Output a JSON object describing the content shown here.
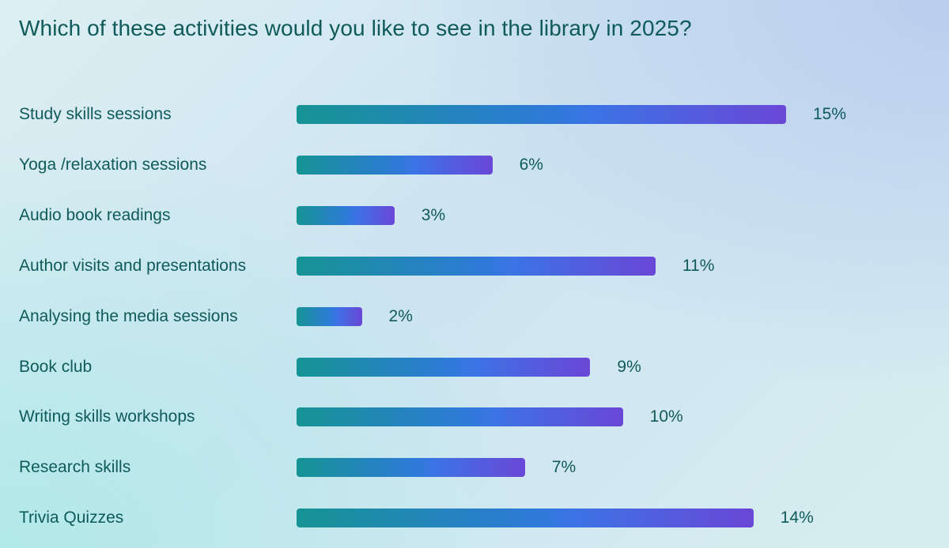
{
  "chart_data": {
    "type": "bar",
    "orientation": "horizontal",
    "title": "Which of these activities would you like to see in the library in 2025?",
    "categories": [
      "Study skills sessions",
      "Yoga /relaxation sessions",
      "Audio book readings",
      "Author visits and presentations",
      "Analysing the media sessions",
      "Book club",
      "Writing skills workshops",
      "Research skills",
      "Trivia Quizzes"
    ],
    "values": [
      15,
      6,
      3,
      11,
      2,
      9,
      10,
      7,
      14
    ],
    "value_labels": [
      "15%",
      "6%",
      "3%",
      "11%",
      "2%",
      "9%",
      "10%",
      "7%",
      "14%"
    ],
    "unit": "%",
    "xlim": [
      0,
      15
    ],
    "grid": false,
    "legend": "none",
    "colors": {
      "bar_gradient_start": "#169494",
      "bar_gradient_mid": "#3b74e4",
      "bar_gradient_end": "#6a47d6",
      "text": "#0f5a5a"
    }
  }
}
